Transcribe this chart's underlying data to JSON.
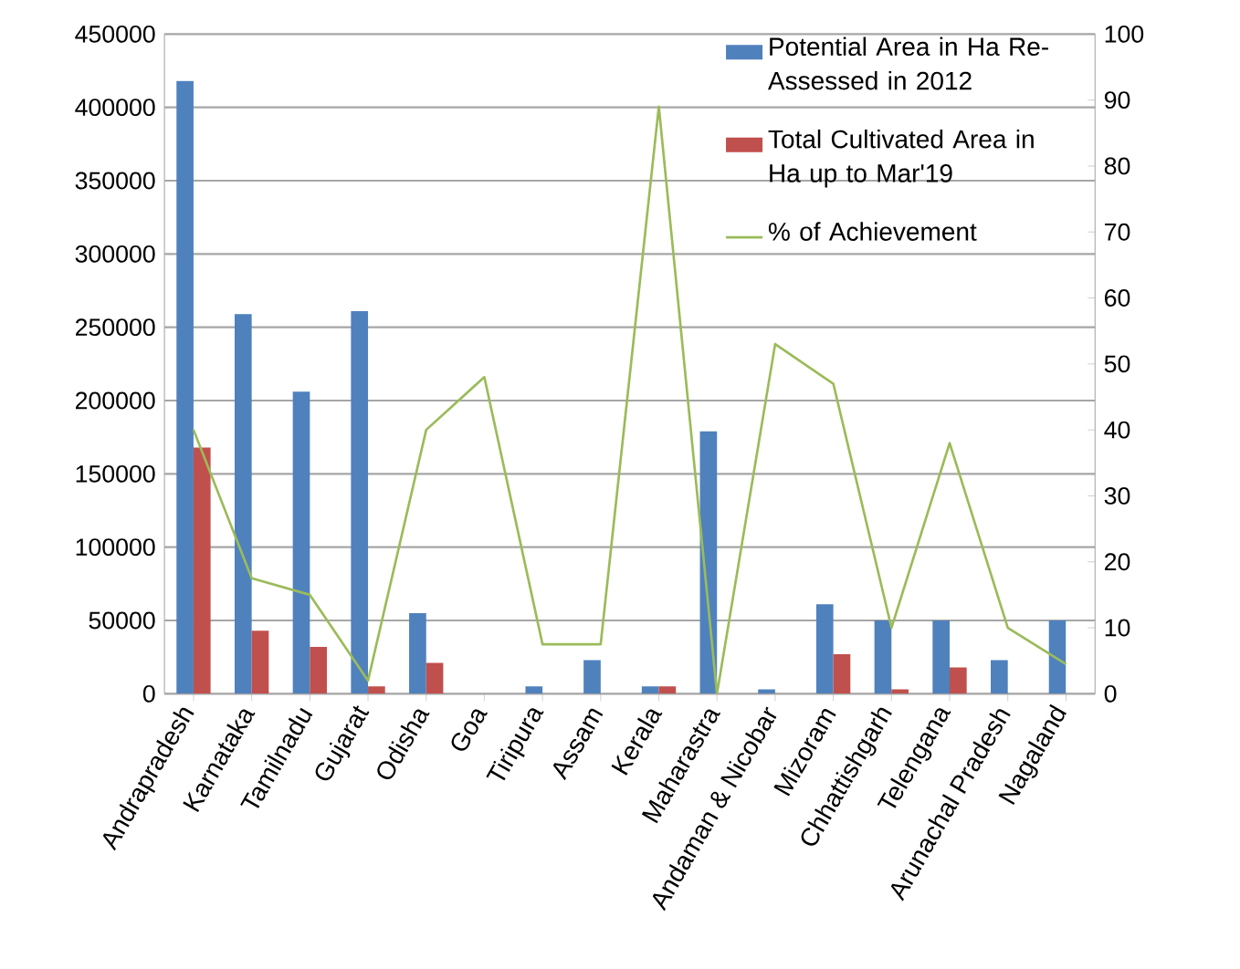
{
  "chart_data": {
    "type": "bar",
    "categories": [
      "Andrapradesh",
      "Karnataka",
      "Tamilnadu",
      "Gujarat",
      "Odisha",
      "Goa",
      "Tiripura",
      "Assam",
      "Kerala",
      "Maharastra",
      "Andaman & Nicobar",
      "Mizoram",
      "Chhattishgarh",
      "Telengana",
      "Arunachal Pradesh",
      "Nagaland"
    ],
    "series": [
      {
        "name": "Potential Area in Ha Re-Assessed in 2012",
        "color": "#4f81bd",
        "values": [
          418000,
          259000,
          206000,
          261000,
          55000,
          0,
          5000,
          23000,
          5000,
          179000,
          3000,
          61000,
          50000,
          50000,
          23000,
          50000
        ]
      },
      {
        "name": "Total Cultivated Area in Ha up to Mar'19",
        "color": "#c0504d",
        "values": [
          168000,
          43000,
          32000,
          5000,
          21000,
          0,
          0,
          0,
          5000,
          0,
          0,
          27000,
          3000,
          18000,
          0,
          0
        ]
      },
      {
        "name": "% of Achievement",
        "color": "#9bbb59",
        "type": "line",
        "axis": "y2",
        "values": [
          40,
          17.5,
          15,
          2,
          40,
          48,
          7.5,
          7.5,
          89,
          0,
          53,
          47,
          10,
          38,
          10,
          4.5
        ]
      }
    ],
    "ylim": [
      0,
      450000
    ],
    "yticks": [
      0,
      50000,
      100000,
      150000,
      200000,
      250000,
      300000,
      350000,
      400000,
      450000
    ],
    "y2lim": [
      0,
      100
    ],
    "y2ticks": [
      0,
      10,
      20,
      30,
      40,
      50,
      60,
      70,
      80,
      90,
      100
    ],
    "grid": "y",
    "legend": "top right"
  }
}
